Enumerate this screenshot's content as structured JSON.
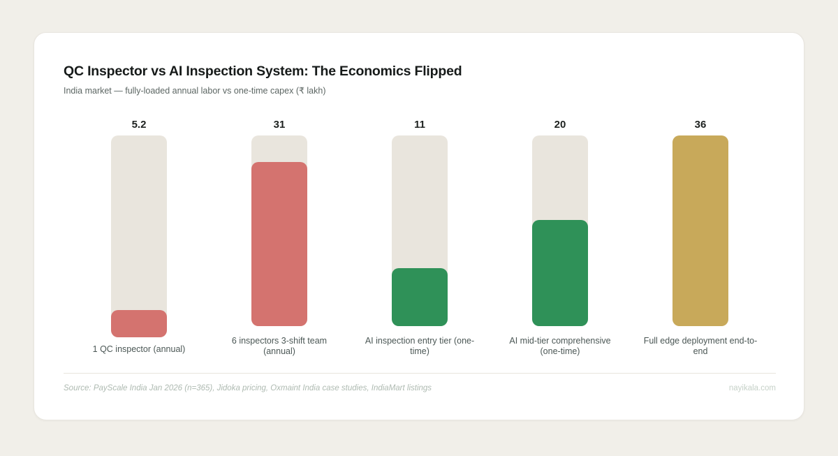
{
  "header": {
    "title": "QC Inspector vs AI Inspection System: The Economics Flipped",
    "subtitle": "India market — fully-loaded annual labor vs one-time capex (₹ lakh)"
  },
  "chart_data": {
    "type": "bar",
    "title": "QC Inspector vs AI Inspection System: The Economics Flipped",
    "subtitle": "India market — fully-loaded annual labor vs one-time capex (₹ lakh)",
    "unit": "₹ lakh",
    "ylim": [
      0,
      36
    ],
    "grid": false,
    "legend": "none",
    "orientation": "vertical",
    "categories": [
      "1 QC inspector (annual)",
      "6 inspectors 3-shift team (annual)",
      "AI inspection entry tier (one-time)",
      "AI mid-tier comprehensive (one-time)",
      "Full edge deployment end-to-end"
    ],
    "values": [
      5.2,
      31,
      11,
      20,
      36
    ],
    "bars": [
      {
        "value": 5.2,
        "value_label": "5.2",
        "label": "1 QC inspector (annual)",
        "label_lines": [
          "1 QC inspector (annual)"
        ],
        "color": "#d4736f"
      },
      {
        "value": 31,
        "value_label": "31",
        "label": "6 inspectors 3-shift team (annual)",
        "label_lines": [
          "6 inspectors 3-shift team",
          "(annual)"
        ],
        "color": "#d4736f"
      },
      {
        "value": 11,
        "value_label": "11",
        "label": "AI inspection entry tier (one-time)",
        "label_lines": [
          "AI inspection entry tier (one-",
          "time)"
        ],
        "color": "#2f9158"
      },
      {
        "value": 20,
        "value_label": "20",
        "label": "AI mid-tier comprehensive (one-time)",
        "label_lines": [
          "AI mid-tier comprehensive",
          "(one-time)"
        ],
        "color": "#2f9158"
      },
      {
        "value": 36,
        "value_label": "36",
        "label": "Full edge deployment end-to-end",
        "label_lines": [
          "Full edge deployment end-to-",
          "end"
        ],
        "color": "#c8a95a"
      }
    ],
    "colors": {
      "labor_red": "#d4736f",
      "ai_green": "#2f9158",
      "full_deployment_gold": "#c8a95a",
      "track": "#e9e5dd",
      "page_background": "#f1efe9",
      "card_background": "#ffffff"
    }
  },
  "footer": {
    "source": "Source: PayScale India Jan 2026 (n=365), Jidoka pricing, Oxmaint India case studies, IndiaMart listings",
    "watermark": "nayikala.com"
  }
}
